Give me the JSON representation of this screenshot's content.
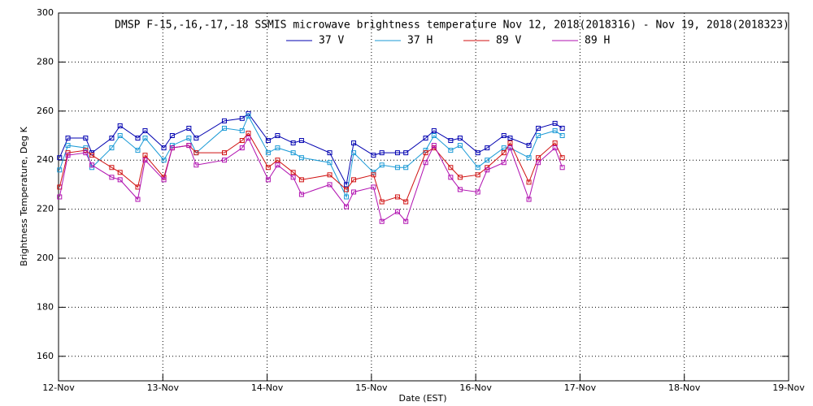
{
  "chart_data": {
    "type": "line",
    "title": "DMSP F-15,-16,-17,-18 SSMIS microwave brightness temperature Nov 12, 2018(2018316) - Nov 19, 2018(2018323)",
    "x_label": "Date (EST)",
    "y_label": "Brightness Temperature, Deg K",
    "x": [
      12.01,
      12.09,
      12.26,
      12.32,
      12.51,
      12.59,
      12.76,
      12.83,
      13.01,
      13.09,
      13.25,
      13.32,
      13.59,
      13.76,
      13.82,
      14.01,
      14.1,
      14.25,
      14.33,
      14.6,
      14.76,
      14.83,
      15.02,
      15.1,
      15.25,
      15.33,
      15.52,
      15.6,
      15.76,
      15.85,
      16.02,
      16.11,
      16.27,
      16.33,
      16.51,
      16.6,
      16.76,
      16.83
    ],
    "series": [
      {
        "name": "37 V",
        "color": "#0000b0",
        "values": [
          241,
          249,
          249,
          243,
          249,
          254,
          249,
          252,
          245,
          250,
          253,
          249,
          256,
          257,
          259,
          248,
          250,
          247,
          248,
          243,
          230,
          247,
          242,
          243,
          243,
          243,
          249,
          252,
          248,
          249,
          243,
          245,
          250,
          249,
          246,
          253,
          255,
          253
        ]
      },
      {
        "name": "37 H",
        "color": "#1a9ad6",
        "values": [
          236,
          246,
          245,
          237,
          245,
          250,
          244,
          249,
          240,
          246,
          249,
          243,
          253,
          252,
          258,
          243,
          245,
          243,
          241,
          239,
          225,
          243,
          235,
          238,
          237,
          237,
          244,
          250,
          244,
          246,
          237,
          240,
          245,
          245,
          241,
          250,
          252,
          250
        ]
      },
      {
        "name": "89 V",
        "color": "#d01010",
        "values": [
          229,
          243,
          244,
          242,
          237,
          235,
          229,
          242,
          233,
          245,
          246,
          243,
          243,
          248,
          251,
          237,
          240,
          235,
          232,
          234,
          228,
          232,
          234,
          223,
          225,
          223,
          243,
          245,
          237,
          233,
          234,
          237,
          243,
          247,
          231,
          241,
          247,
          241
        ]
      },
      {
        "name": "89 H",
        "color": "#b010b0",
        "values": [
          225,
          242,
          243,
          238,
          233,
          232,
          224,
          240,
          232,
          245,
          246,
          238,
          240,
          245,
          249,
          232,
          238,
          233,
          226,
          230,
          221,
          227,
          229,
          215,
          219,
          215,
          239,
          246,
          233,
          228,
          227,
          236,
          239,
          245,
          224,
          239,
          245,
          237
        ]
      }
    ],
    "xlim": [
      12,
      19
    ],
    "xticks": [
      {
        "value": 12,
        "label": "12-Nov"
      },
      {
        "value": 13,
        "label": "13-Nov"
      },
      {
        "value": 14,
        "label": "14-Nov"
      },
      {
        "value": 15,
        "label": "15-Nov"
      },
      {
        "value": 16,
        "label": "16-Nov"
      },
      {
        "value": 17,
        "label": "17-Nov"
      },
      {
        "value": 18,
        "label": "18-Nov"
      },
      {
        "value": 19,
        "label": "19-Nov"
      }
    ],
    "ylim": [
      150,
      300
    ],
    "yticks": [
      160,
      180,
      200,
      220,
      240,
      260,
      280,
      300
    ],
    "grid": true,
    "marker": "square"
  }
}
